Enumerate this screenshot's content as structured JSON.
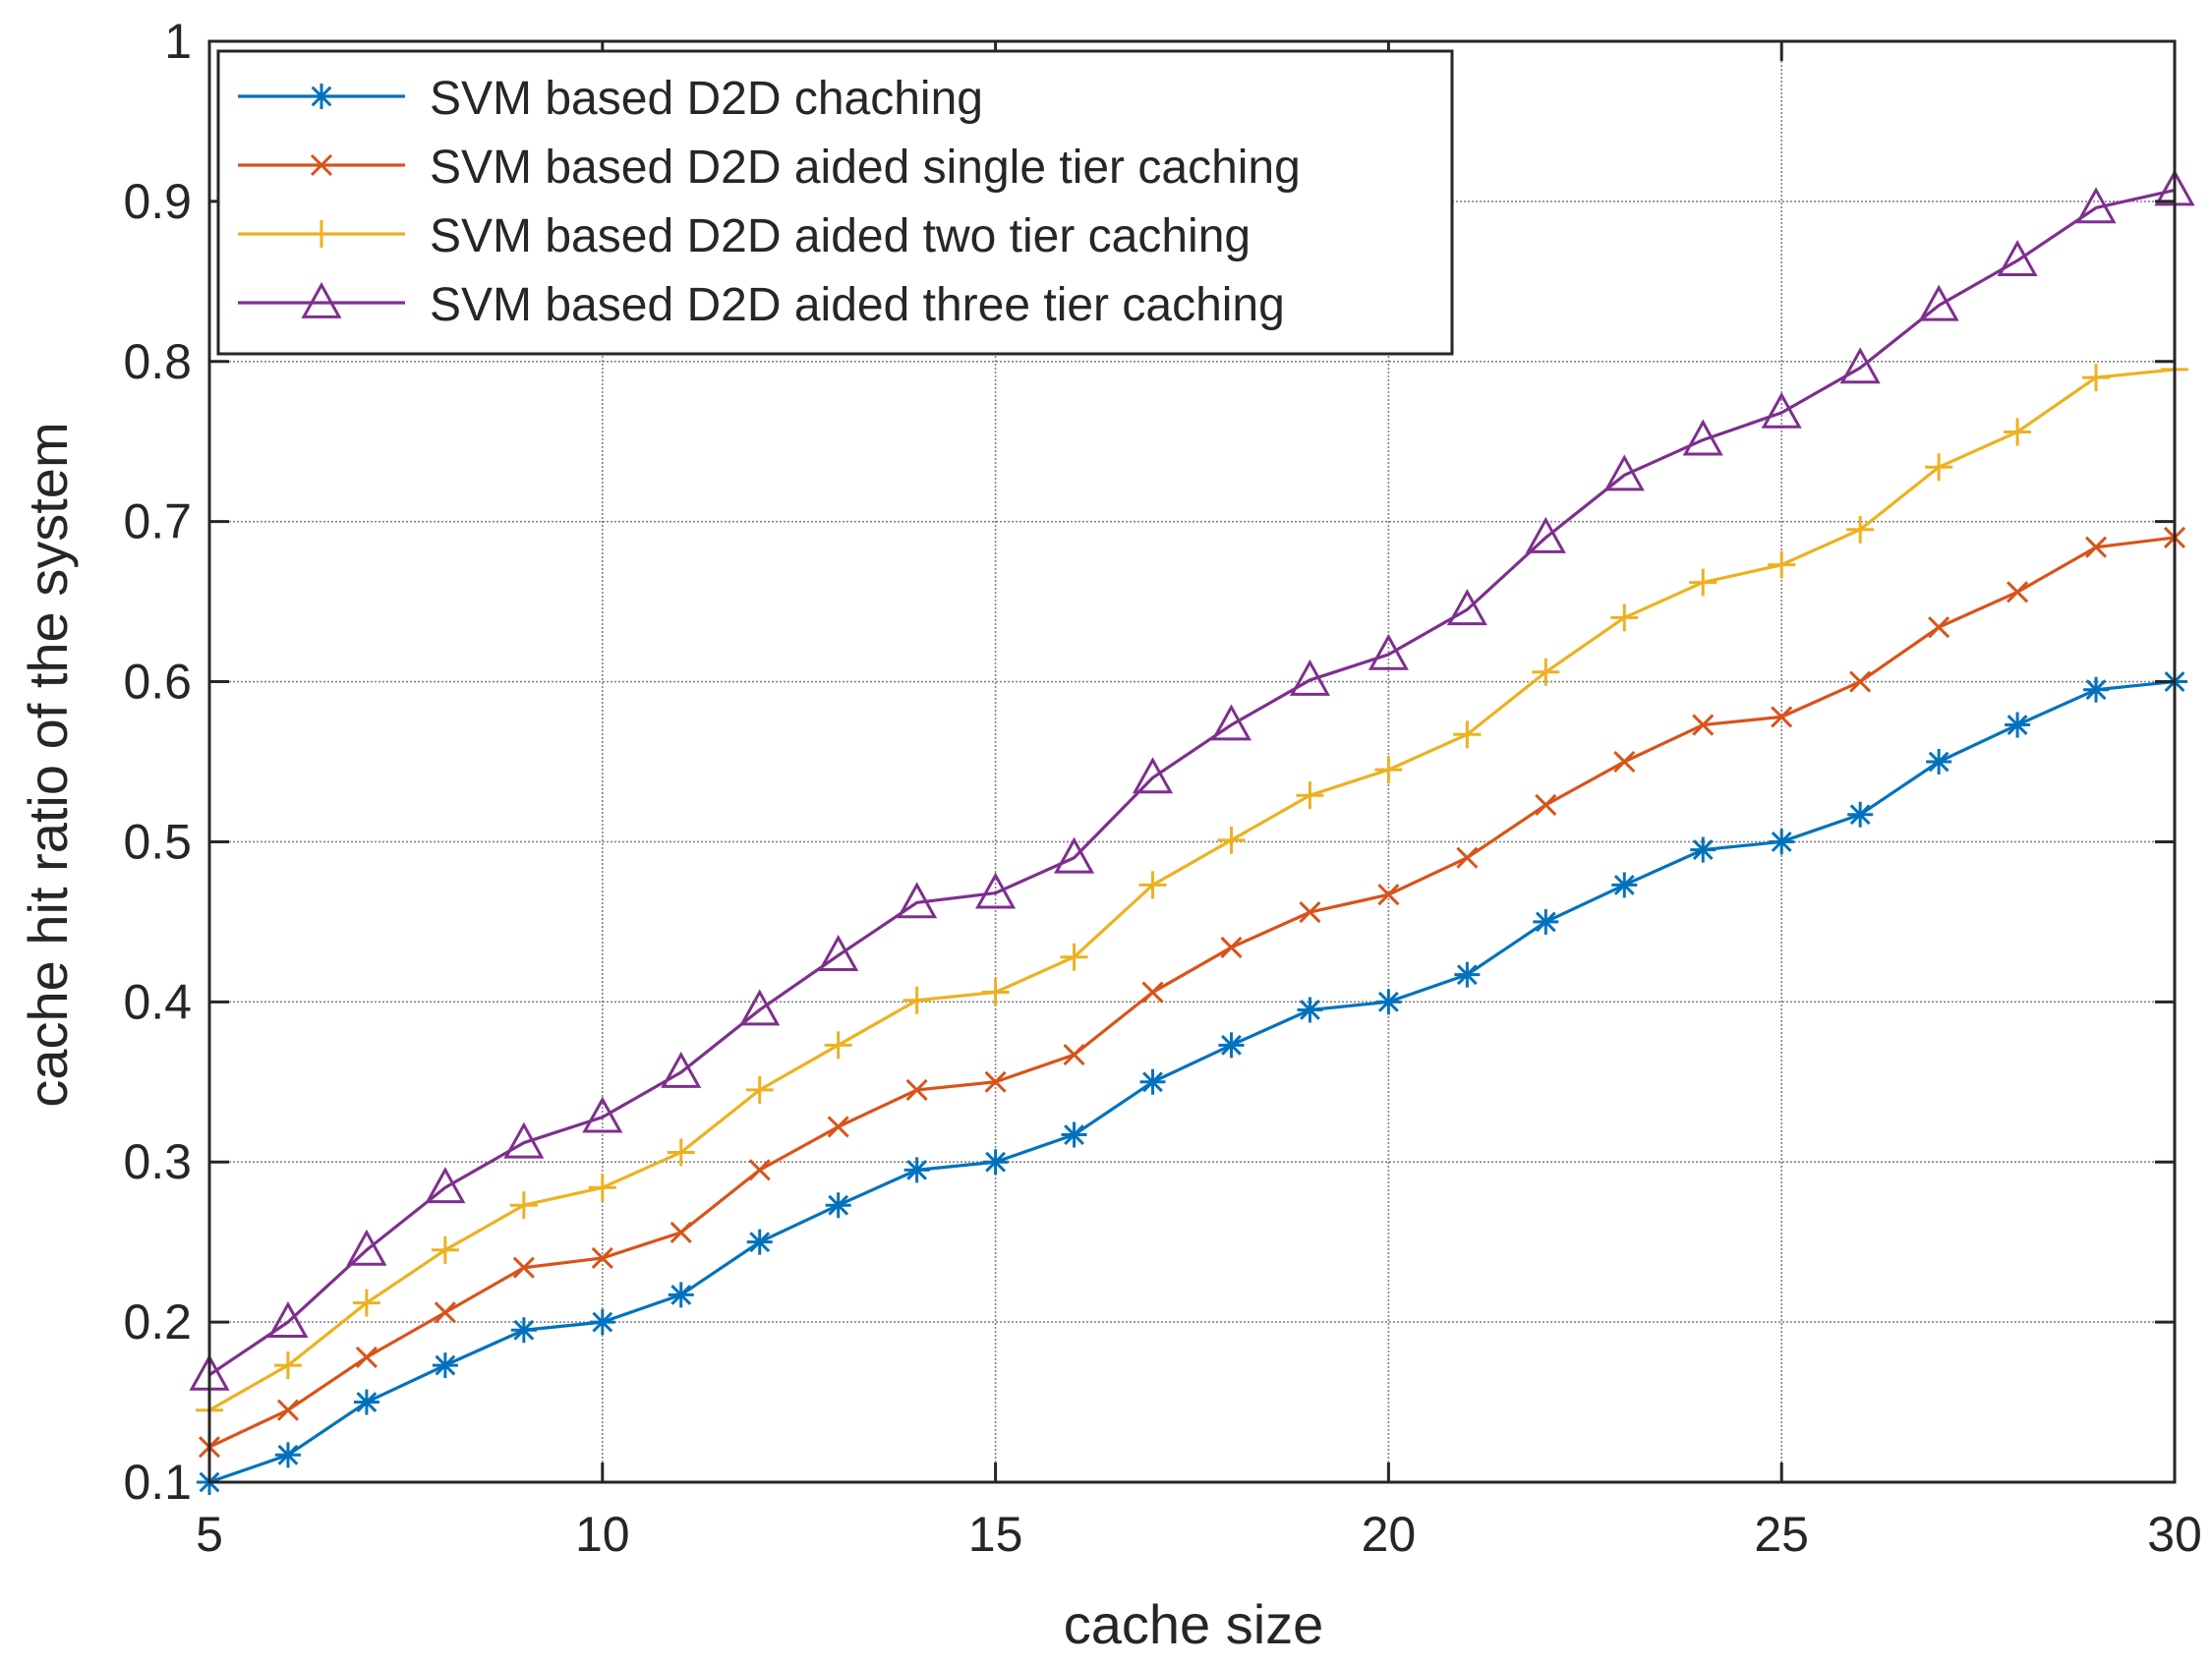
{
  "chart_data": {
    "type": "line",
    "title": "",
    "xlabel": "cache size",
    "ylabel": "cache hit ratio of the system",
    "xlim": [
      5,
      30
    ],
    "ylim": [
      0.1,
      1
    ],
    "xticks": [
      5,
      10,
      15,
      20,
      25,
      30
    ],
    "yticks": [
      0.1,
      0.2,
      0.3,
      0.4,
      0.5,
      0.6,
      0.7,
      0.8,
      0.9,
      1
    ],
    "xtick_labels": [
      "5",
      "10",
      "15",
      "20",
      "25",
      "30"
    ],
    "ytick_labels": [
      "0.1",
      "0.2",
      "0.3",
      "0.4",
      "0.5",
      "0.6",
      "0.7",
      "0.8",
      "0.9",
      "1"
    ],
    "grid": true,
    "legend_position": "top-left",
    "x": [
      5,
      6,
      7,
      8,
      9,
      10,
      11,
      12,
      13,
      14,
      15,
      16,
      17,
      18,
      19,
      20,
      21,
      22,
      23,
      24,
      25,
      26,
      27,
      28,
      29,
      30
    ],
    "series": [
      {
        "name": "SVM based D2D chaching",
        "color": "#0072BD",
        "marker": "asterisk",
        "values": [
          0.1,
          0.117,
          0.15,
          0.173,
          0.195,
          0.2,
          0.217,
          0.25,
          0.273,
          0.295,
          0.3,
          0.317,
          0.35,
          0.373,
          0.395,
          0.4,
          0.417,
          0.45,
          0.473,
          0.495,
          0.5,
          0.517,
          0.55,
          0.573,
          0.595,
          0.6
        ]
      },
      {
        "name": "SVM based D2D aided single tier caching",
        "color": "#D95319",
        "marker": "x",
        "values": [
          0.122,
          0.145,
          0.178,
          0.206,
          0.234,
          0.24,
          0.256,
          0.295,
          0.322,
          0.345,
          0.35,
          0.367,
          0.406,
          0.434,
          0.456,
          0.467,
          0.49,
          0.523,
          0.55,
          0.573,
          0.578,
          0.6,
          0.634,
          0.656,
          0.684,
          0.69
        ]
      },
      {
        "name": "SVM based D2D aided two tier caching",
        "color": "#EDB120",
        "marker": "plus",
        "values": [
          0.145,
          0.173,
          0.212,
          0.245,
          0.273,
          0.284,
          0.306,
          0.345,
          0.373,
          0.401,
          0.406,
          0.428,
          0.473,
          0.501,
          0.529,
          0.545,
          0.567,
          0.606,
          0.64,
          0.662,
          0.673,
          0.695,
          0.734,
          0.756,
          0.79,
          0.795
        ]
      },
      {
        "name": "SVM based D2D aided three tier caching",
        "color": "#7E2F8E",
        "marker": "triangle",
        "values": [
          0.167,
          0.2,
          0.245,
          0.284,
          0.312,
          0.328,
          0.356,
          0.395,
          0.429,
          0.462,
          0.468,
          0.49,
          0.54,
          0.573,
          0.601,
          0.617,
          0.645,
          0.69,
          0.729,
          0.751,
          0.768,
          0.796,
          0.835,
          0.863,
          0.896,
          0.907
        ]
      }
    ]
  }
}
